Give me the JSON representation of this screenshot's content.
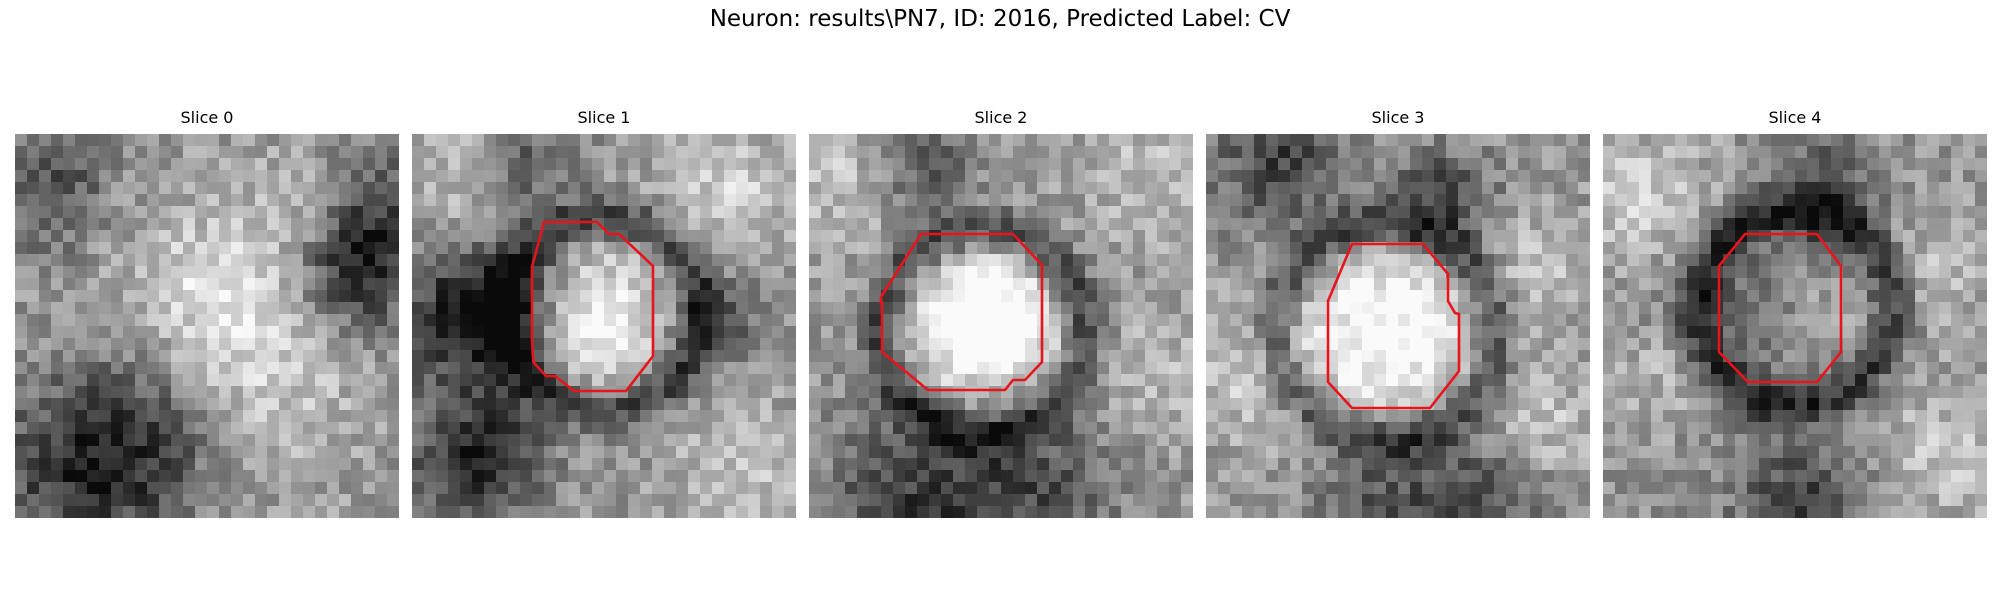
{
  "figure": {
    "title": "Neuron: results\\PN7, ID: 2016, Predicted Label: CV"
  },
  "contour_color": "#e8141c",
  "slices": [
    {
      "title": "Slice 0",
      "has_contour": false
    },
    {
      "title": "Slice 1",
      "has_contour": true
    },
    {
      "title": "Slice 2",
      "has_contour": true
    },
    {
      "title": "Slice 3",
      "has_contour": true
    },
    {
      "title": "Slice 4",
      "has_contour": true
    }
  ]
}
